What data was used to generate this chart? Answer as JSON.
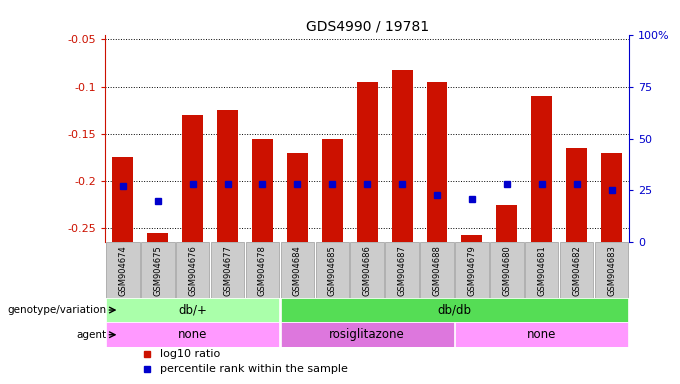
{
  "title": "GDS4990 / 19781",
  "samples": [
    "GSM904674",
    "GSM904675",
    "GSM904676",
    "GSM904677",
    "GSM904678",
    "GSM904684",
    "GSM904685",
    "GSM904686",
    "GSM904687",
    "GSM904688",
    "GSM904679",
    "GSM904680",
    "GSM904681",
    "GSM904682",
    "GSM904683"
  ],
  "log10_ratio": [
    -0.175,
    -0.255,
    -0.13,
    -0.125,
    -0.155,
    -0.17,
    -0.155,
    -0.095,
    -0.083,
    -0.095,
    -0.257,
    -0.225,
    -0.11,
    -0.165,
    -0.17
  ],
  "percentile": [
    27,
    20,
    28,
    28,
    28,
    28,
    28,
    28,
    28,
    23,
    21,
    28,
    28,
    28,
    25
  ],
  "bar_bottom": -0.265,
  "ylim_left": [
    -0.265,
    -0.045
  ],
  "ylim_right": [
    0,
    100
  ],
  "yticks_left": [
    -0.25,
    -0.2,
    -0.15,
    -0.1,
    -0.05
  ],
  "ytick_labels_left": [
    "-0.25",
    "-0.2",
    "-0.15",
    "-0.1",
    "-0.05"
  ],
  "yticks_right": [
    0,
    25,
    50,
    75,
    100
  ],
  "ytick_labels_right": [
    "0",
    "25",
    "50",
    "75",
    "100%"
  ],
  "bar_color": "#CC1100",
  "percentile_color": "#0000CC",
  "bg_color": "#FFFFFF",
  "left_label_color": "#CC1100",
  "right_label_color": "#0000CC",
  "genotype_groups": [
    {
      "label": "db/+",
      "start": 0,
      "end": 4,
      "color": "#AAFFAA"
    },
    {
      "label": "db/db",
      "start": 5,
      "end": 14,
      "color": "#55DD55"
    }
  ],
  "agent_groups": [
    {
      "label": "none",
      "start": 0,
      "end": 4,
      "color": "#FF99FF"
    },
    {
      "label": "rosiglitazone",
      "start": 5,
      "end": 9,
      "color": "#DD77DD"
    },
    {
      "label": "none",
      "start": 10,
      "end": 14,
      "color": "#FF99FF"
    }
  ],
  "genotype_label": "genotype/variation",
  "agent_label": "agent",
  "legend_red": "log10 ratio",
  "legend_blue": "percentile rank within the sample",
  "xticklabel_bg": "#CCCCCC"
}
